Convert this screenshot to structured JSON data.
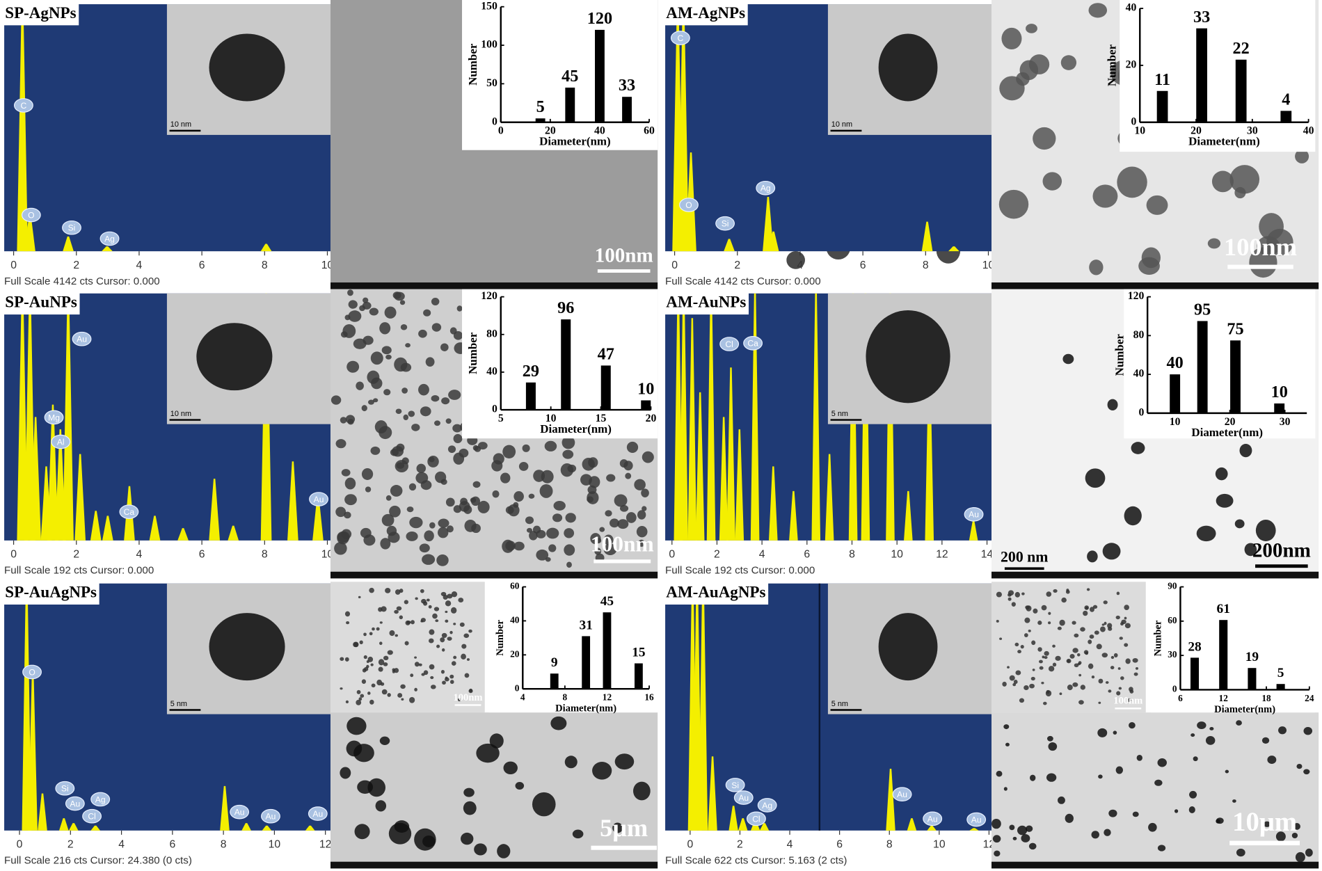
{
  "panels": [
    {
      "label": "SP-AgNPs",
      "caption": "Full Scale 4142 cts Cursor: 0.000",
      "xlim": [
        -0.3,
        10.1
      ],
      "xticks": [
        0,
        2,
        4,
        6,
        8,
        10
      ],
      "elements": [
        "C",
        "O",
        "Si",
        "Ag"
      ],
      "peaks": [
        [
          0.28,
          1.2
        ],
        [
          0.52,
          0.15
        ],
        [
          1.74,
          0.06
        ],
        [
          2.98,
          0.02
        ],
        [
          8.05,
          0.03
        ]
      ],
      "inset_scale": "10 nm",
      "scale_bars": [
        "100nm"
      ]
    },
    {
      "label": "AM-AgNPs",
      "caption": "Full Scale 4142 cts Cursor: 0.000",
      "xlim": [
        -0.3,
        10.1
      ],
      "xticks": [
        0,
        2,
        4,
        6,
        8,
        10
      ],
      "elements": [
        "C",
        "O",
        "Si",
        "Ag"
      ],
      "peaks": [
        [
          0.1,
          1.2
        ],
        [
          0.28,
          1.2
        ],
        [
          0.52,
          0.4
        ],
        [
          1.74,
          0.05
        ],
        [
          2.98,
          0.22
        ],
        [
          3.15,
          0.08
        ],
        [
          8.05,
          0.12
        ],
        [
          8.9,
          0.02
        ]
      ],
      "inset_scale": "10 nm",
      "scale_bars": [
        "100nm"
      ]
    },
    {
      "label": "SP-AuNPs",
      "caption": "Full Scale 192 cts Cursor: 0.000",
      "xlim": [
        -0.3,
        10.1
      ],
      "xticks": [
        0,
        2,
        4,
        6,
        8,
        10
      ],
      "elements": [
        "Au",
        "Mg",
        "Al",
        "Ca",
        "Au",
        "Au"
      ],
      "peaks": [
        [
          0.28,
          1.2
        ],
        [
          0.52,
          1.2
        ],
        [
          0.7,
          0.5
        ],
        [
          1.04,
          0.3
        ],
        [
          1.25,
          0.55
        ],
        [
          1.49,
          0.45
        ],
        [
          1.74,
          1.2
        ],
        [
          2.12,
          0.35
        ],
        [
          2.62,
          0.12
        ],
        [
          3.0,
          0.1
        ],
        [
          3.69,
          0.22
        ],
        [
          4.5,
          0.1
        ],
        [
          5.4,
          0.05
        ],
        [
          6.4,
          0.25
        ],
        [
          7.0,
          0.06
        ],
        [
          8.05,
          1.2
        ],
        [
          8.9,
          0.32
        ],
        [
          9.7,
          0.18
        ]
      ],
      "inset_scale": "10 nm",
      "scale_bars": [
        "100nm"
      ]
    },
    {
      "label": "AM-AuNPs",
      "caption": "Full Scale 192 cts Cursor: 0.000",
      "xlim": [
        -0.3,
        14.2
      ],
      "xticks": [
        0,
        2,
        4,
        6,
        8,
        10,
        12,
        14
      ],
      "elements": [
        "Cl",
        "Ca",
        "Au"
      ],
      "peaks": [
        [
          0.28,
          1.2
        ],
        [
          0.52,
          1.2
        ],
        [
          0.9,
          0.9
        ],
        [
          1.25,
          0.6
        ],
        [
          1.74,
          1.2
        ],
        [
          2.3,
          0.5
        ],
        [
          2.62,
          0.7
        ],
        [
          3.0,
          0.45
        ],
        [
          3.69,
          1.2
        ],
        [
          4.5,
          0.3
        ],
        [
          5.4,
          0.2
        ],
        [
          6.4,
          1.2
        ],
        [
          7.0,
          0.35
        ],
        [
          8.05,
          1.2
        ],
        [
          8.6,
          1.2
        ],
        [
          9.7,
          1.2
        ],
        [
          10.5,
          0.2
        ],
        [
          11.44,
          0.72
        ],
        [
          13.4,
          0.08
        ]
      ],
      "inset_scale": "5 nm",
      "scale_bars": [
        "200 nm",
        "200nm"
      ]
    },
    {
      "label": "SP-AuAgNPs",
      "caption": "Full Scale 216 cts Cursor: 24.380 (0 cts)",
      "xlim": [
        -0.6,
        12.2
      ],
      "xticks": [
        0,
        2,
        4,
        6,
        8,
        10,
        12
      ],
      "elements": [
        "O",
        "Si",
        "Au",
        "Ag",
        "Cl",
        "Au",
        "Au",
        "Au"
      ],
      "peaks": [
        [
          0.28,
          1.2
        ],
        [
          0.52,
          0.65
        ],
        [
          0.9,
          0.15
        ],
        [
          1.74,
          0.05
        ],
        [
          2.12,
          0.03
        ],
        [
          2.98,
          0.02
        ],
        [
          8.05,
          0.18
        ],
        [
          8.9,
          0.03
        ],
        [
          9.7,
          0.02
        ],
        [
          11.4,
          0.02
        ]
      ],
      "inset_scale": "5 nm",
      "scale_bars": [
        "100nm",
        "5μm"
      ]
    },
    {
      "label": "AM-AuAgNPs",
      "caption": "Full Scale 622 cts Cursor: 5.163 (2 cts)",
      "xlim": [
        -1.0,
        12.1
      ],
      "xticks": [
        0,
        2,
        4,
        6,
        8,
        10,
        12
      ],
      "elements": [
        "Si",
        "Au",
        "Ag",
        "Cl",
        "Au",
        "Au",
        "Au"
      ],
      "peaks": [
        [
          0.1,
          1.2
        ],
        [
          0.28,
          1.2
        ],
        [
          0.52,
          1.2
        ],
        [
          0.9,
          0.3
        ],
        [
          1.74,
          0.1
        ],
        [
          2.12,
          0.05
        ],
        [
          2.62,
          0.04
        ],
        [
          2.98,
          0.03
        ],
        [
          8.05,
          0.25
        ],
        [
          8.9,
          0.05
        ],
        [
          9.7,
          0.02
        ],
        [
          11.4,
          0.01
        ]
      ],
      "inset_scale": "5 nm",
      "scale_bars": [
        "100nm",
        "10μm"
      ]
    }
  ],
  "chart_data": [
    {
      "type": "bar",
      "x": [
        16,
        28,
        40,
        51
      ],
      "values": [
        5,
        45,
        120,
        33
      ],
      "xlim": [
        0,
        60
      ],
      "xticks": [
        0,
        20,
        40,
        60
      ],
      "ylim": [
        0,
        150
      ],
      "yticks": [
        0,
        50,
        100,
        150
      ],
      "xlabel": "Diameter(nm)",
      "ylabel": "Number",
      "color": "#000000"
    },
    {
      "type": "bar",
      "x": [
        14,
        21,
        28,
        36
      ],
      "values": [
        11,
        33,
        22,
        4
      ],
      "xlim": [
        10,
        40
      ],
      "xticks": [
        10,
        20,
        30,
        40
      ],
      "ylim": [
        0,
        40
      ],
      "yticks": [
        0,
        20,
        40
      ],
      "xlabel": "Diameter(nm)",
      "ylabel": "Number",
      "color": "#000000"
    },
    {
      "type": "bar",
      "x": [
        8,
        11.5,
        15.5,
        19.5
      ],
      "values": [
        29,
        96,
        47,
        10
      ],
      "xlim": [
        5,
        20
      ],
      "xticks": [
        5,
        10,
        15,
        20
      ],
      "ylim": [
        0,
        120
      ],
      "yticks": [
        0,
        40,
        80,
        120
      ],
      "xlabel": "Diameter(nm)",
      "ylabel": "Number",
      "color": "#000000"
    },
    {
      "type": "bar",
      "x": [
        10,
        15,
        21,
        29
      ],
      "values": [
        40,
        95,
        75,
        10
      ],
      "xlim": [
        5,
        34
      ],
      "xticks": [
        10,
        20,
        30
      ],
      "ylim": [
        0,
        120
      ],
      "yticks": [
        0,
        40,
        80,
        120
      ],
      "xlabel": "Diameter(nm)",
      "ylabel": "Number",
      "color": "#000000"
    },
    {
      "type": "bar",
      "x": [
        7,
        10,
        12,
        15
      ],
      "values": [
        9,
        31,
        45,
        15
      ],
      "xlim": [
        4,
        16
      ],
      "xticks": [
        4,
        8,
        12,
        16
      ],
      "ylim": [
        0,
        60
      ],
      "yticks": [
        0,
        20,
        40,
        60
      ],
      "xlabel": "Diameter(nm)",
      "ylabel": "Number",
      "color": "#000000"
    },
    {
      "type": "bar",
      "x": [
        8,
        12,
        16,
        20
      ],
      "values": [
        28,
        61,
        19,
        5
      ],
      "xlim": [
        6,
        24
      ],
      "xticks": [
        6,
        12,
        18,
        24
      ],
      "ylim": [
        0,
        90
      ],
      "yticks": [
        0,
        30,
        60,
        90
      ],
      "xlabel": "Diameter(nm)",
      "ylabel": "Number",
      "color": "#000000"
    }
  ]
}
